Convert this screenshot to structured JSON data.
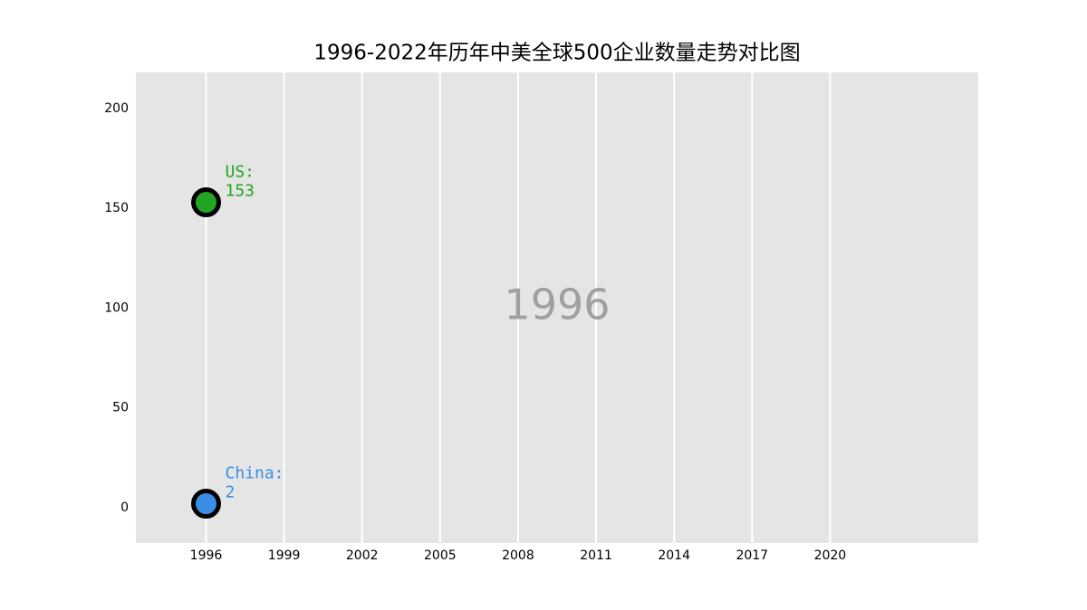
{
  "chart_data": {
    "type": "scatter",
    "title": "1996-2022年历年中美全球500企业数量走势对比图",
    "annotation": "1996",
    "x": [
      1996
    ],
    "series": [
      {
        "name": "US:",
        "color": "#22a522",
        "values": [
          153
        ]
      },
      {
        "name": "China:",
        "color": "#3a8ee6",
        "values": [
          2
        ]
      }
    ],
    "xlim": [
      1993.3,
      2025.7
    ],
    "xticks": [
      1996,
      1999,
      2002,
      2005,
      2008,
      2011,
      2014,
      2017,
      2020
    ],
    "ylim": [
      -17.7,
      218.1
    ],
    "yticks": [
      0,
      50,
      100,
      150,
      200
    ],
    "grid": true,
    "background": "#e5e5e5"
  }
}
